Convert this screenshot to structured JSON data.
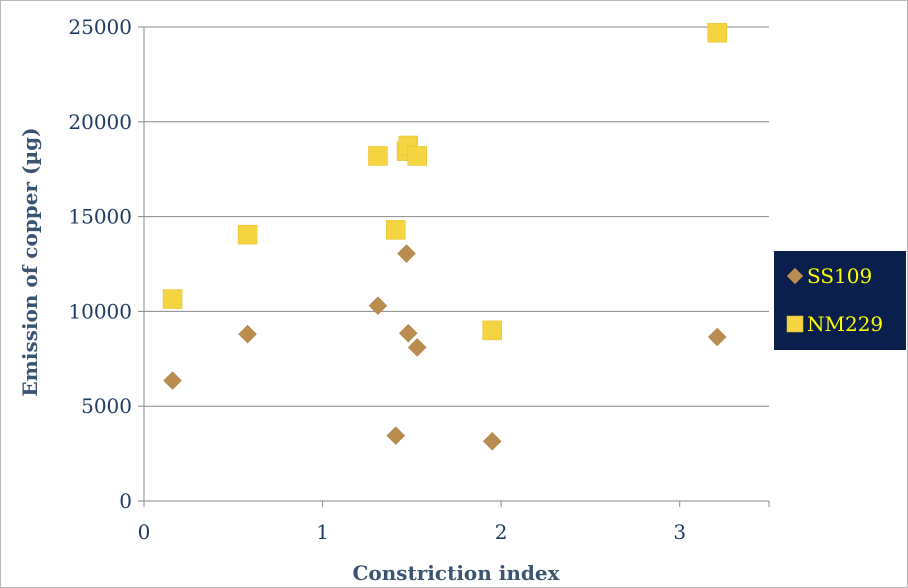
{
  "chart_data": {
    "type": "scatter",
    "xlabel": "Constriction index",
    "ylabel": "Emission of copper (µg)",
    "xlim": [
      0,
      3.5
    ],
    "ylim": [
      0,
      25000
    ],
    "x_ticks": [
      0,
      1,
      2,
      3
    ],
    "x_tick_labels": [
      "0",
      "1",
      "2",
      "3"
    ],
    "y_ticks": [
      0,
      5000,
      10000,
      15000,
      20000,
      25000
    ],
    "y_tick_labels": [
      "0",
      "5000",
      "10000",
      "15000",
      "20000",
      "25000"
    ],
    "grid": "horizontal",
    "legend_position": "right",
    "series": [
      {
        "name": "SS109",
        "marker": "diamond",
        "color": "#b98c4f",
        "points": [
          [
            0.16,
            6350
          ],
          [
            0.58,
            8800
          ],
          [
            1.31,
            10300
          ],
          [
            1.41,
            3450
          ],
          [
            1.47,
            13050
          ],
          [
            1.48,
            8850
          ],
          [
            1.53,
            8100
          ],
          [
            1.95,
            3150
          ],
          [
            3.21,
            8650
          ]
        ]
      },
      {
        "name": "NM229",
        "marker": "square",
        "color": "#f5d442",
        "points": [
          [
            0.16,
            10650
          ],
          [
            0.58,
            14050
          ],
          [
            1.31,
            18200
          ],
          [
            1.41,
            14300
          ],
          [
            1.47,
            18450
          ],
          [
            1.48,
            18750
          ],
          [
            1.53,
            18200
          ],
          [
            1.95,
            9000
          ],
          [
            3.21,
            24700
          ]
        ]
      }
    ]
  },
  "legend": {
    "background": "#0b1f4d",
    "text_color": "#ffff00"
  }
}
